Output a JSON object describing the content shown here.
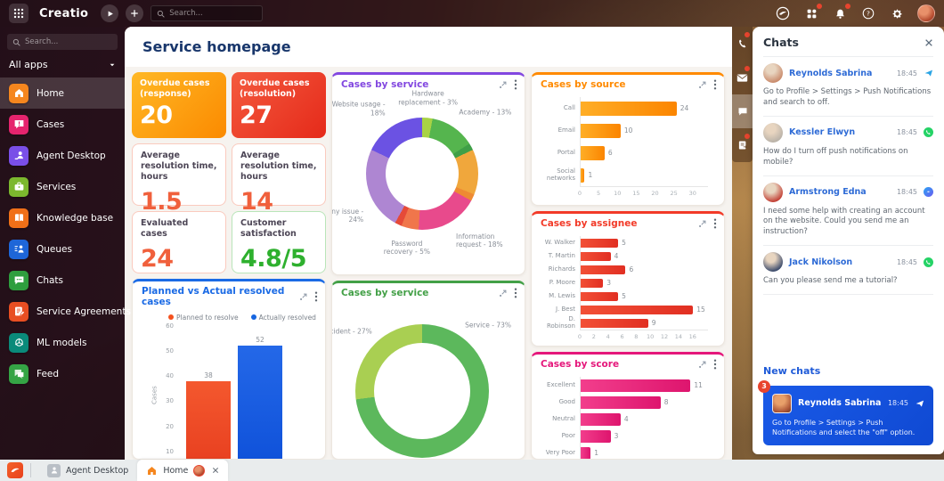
{
  "topbar": {
    "logo_text": "Creatio",
    "search_placeholder": "Search...",
    "right_icons": [
      {
        "icon": "creatio-bird",
        "dot": false
      },
      {
        "icon": "workspace-grid",
        "dot": true
      },
      {
        "icon": "bell",
        "dot": true
      },
      {
        "icon": "help",
        "dot": false
      },
      {
        "icon": "settings",
        "dot": false
      }
    ]
  },
  "sidebar": {
    "search_placeholder": "Search...",
    "workspace_selector": "All apps",
    "items": [
      {
        "label": "Home",
        "icon": "home",
        "color": "#f5861e",
        "active": true
      },
      {
        "label": "Cases",
        "icon": "cases",
        "color": "#e5246e",
        "active": false
      },
      {
        "label": "Agent Desktop",
        "icon": "agent-desktop",
        "color": "#7a4fe8",
        "active": false
      },
      {
        "label": "Services",
        "icon": "services",
        "color": "#7cb82e",
        "active": false
      },
      {
        "label": "Knowledge base",
        "icon": "knowledge-base",
        "color": "#f07018",
        "active": false
      },
      {
        "label": "Queues",
        "icon": "queues",
        "color": "#1e66d8",
        "active": false
      },
      {
        "label": "Chats",
        "icon": "chats",
        "color": "#2e9e3e",
        "active": false
      },
      {
        "label": "Service Agreements",
        "icon": "service-agreements",
        "color": "#e84e22",
        "active": false
      },
      {
        "label": "ML models",
        "icon": "ml-models",
        "color": "#0a8a7a",
        "active": false
      },
      {
        "label": "Feed",
        "icon": "feed",
        "color": "#35a445",
        "active": false
      }
    ]
  },
  "page": {
    "title": "Service homepage"
  },
  "metrics": [
    {
      "label": "Overdue cases (response)",
      "value": "20",
      "style": "m-grad-orange"
    },
    {
      "label": "Overdue cases (resolution)",
      "value": "27",
      "style": "m-grad-red"
    },
    {
      "label": "Average resolution time, hours",
      "value": "1.5",
      "accent": "#f0603c"
    },
    {
      "label": "Average resolution time, hours",
      "value": "14",
      "accent": "#f0603c"
    },
    {
      "label": "Evaluated cases",
      "value": "24",
      "accent": "#f0603c"
    },
    {
      "label": "Customer satisfaction",
      "value": "4.8/5",
      "accent": "#2eb02e"
    }
  ],
  "chart_data": [
    {
      "id": "cases-by-service-detail",
      "type": "pie",
      "title": "Cases by service",
      "accent": "#8247e0",
      "slices": [
        {
          "label": "Hardware replacement",
          "value": 3,
          "color": "#a8d245",
          "show_label": true,
          "label_angle": 5
        },
        {
          "label": "Academy",
          "value": 13,
          "color": "#55b54e",
          "show_label": true,
          "label_angle": 33
        },
        {
          "label": "",
          "value": 2,
          "color": "#3f9f47",
          "show_label": false
        },
        {
          "label": "",
          "value": 13,
          "color": "#f0a73c",
          "show_label": false
        },
        {
          "label": "",
          "value": 2,
          "color": "#ee8a33",
          "show_label": false
        },
        {
          "label": "Information request",
          "value": 18,
          "color": "#e84a8c",
          "show_label": true,
          "label_angle": 150
        },
        {
          "label": "Password recovery",
          "value": 5,
          "color": "#f0764b",
          "show_label": true,
          "label_angle": 193
        },
        {
          "label": "",
          "value": 2,
          "color": "#e54a38",
          "show_label": false
        },
        {
          "label": "Telephony issue",
          "value": 24,
          "color": "#ae86d2",
          "show_label": true,
          "label_angle": 240
        },
        {
          "label": "Website usage",
          "value": 18,
          "color": "#6b52e3",
          "show_label": true,
          "label_angle": 327
        }
      ]
    },
    {
      "id": "cases-by-source",
      "type": "bar",
      "orientation": "horizontal",
      "title": "Cases by source",
      "accent": "#ff8a00",
      "bar_gradient": [
        "#ffae26",
        "#fb8500"
      ],
      "categories": [
        "Call",
        "Email",
        "Portal",
        "Social networks"
      ],
      "values": [
        24,
        10,
        6,
        1
      ],
      "xlim": [
        0,
        30
      ],
      "ticks": [
        0,
        5,
        10,
        15,
        20,
        25,
        30
      ]
    },
    {
      "id": "cases-by-assignee",
      "type": "bar",
      "orientation": "horizontal",
      "title": "Cases by assignee",
      "accent": "#f23a28",
      "bar_gradient": [
        "#f25036",
        "#e12f22"
      ],
      "categories": [
        "W. Walker",
        "T. Martin",
        "Richards",
        "P. Moore",
        "M. Lewis",
        "J. Best",
        "D. Robinson"
      ],
      "values": [
        5,
        4,
        6,
        3,
        5,
        15,
        9
      ],
      "xlim": [
        0,
        16
      ],
      "ticks": [
        0,
        2,
        4,
        6,
        8,
        10,
        12,
        14,
        16
      ]
    },
    {
      "id": "cases-by-score",
      "type": "bar",
      "orientation": "horizontal",
      "title": "Cases by score",
      "accent": "#e5177b",
      "bar_gradient": [
        "#f23e8c",
        "#de156e"
      ],
      "categories": [
        "Excellent",
        "Good",
        "Neutral",
        "Poor",
        "Very Poor"
      ],
      "values": [
        11,
        8,
        4,
        3,
        1
      ],
      "xlim": [
        0,
        12
      ],
      "ticks": []
    },
    {
      "id": "planned-vs-actual",
      "type": "bar",
      "orientation": "vertical",
      "title": "Planned vs Actual resolved cases",
      "accent": "#1a6ae5",
      "ylabel": "Cases",
      "ylim": [
        0,
        60
      ],
      "yticks": [
        10,
        20,
        30,
        40,
        50,
        60
      ],
      "series": [
        {
          "name": "Planned to resolve",
          "value": 38,
          "color": "#f4511e",
          "gradient": [
            "#f4582e",
            "#e63c1e"
          ]
        },
        {
          "name": "Actually resolved",
          "value": 52,
          "color": "#1565e0",
          "gradient": [
            "#2468e8",
            "#0d4fd8"
          ]
        }
      ]
    },
    {
      "id": "cases-by-service-split",
      "type": "pie",
      "title": "Cases by service",
      "accent": "#43a047",
      "slices": [
        {
          "label": "Service",
          "value": 73,
          "color": "#5cb85c",
          "show_label": true,
          "label_angle": 35
        },
        {
          "label": "Incident",
          "value": 27,
          "color": "#a9cf52",
          "show_label": true,
          "label_angle": 318
        }
      ]
    }
  ],
  "side_toolbar": {
    "items": [
      {
        "icon": "phone",
        "dot": true,
        "active": false
      },
      {
        "icon": "envelope",
        "dot": true,
        "active": false
      },
      {
        "icon": "chat-bubble",
        "dot": false,
        "active": true
      },
      {
        "icon": "case-doc",
        "dot": true,
        "active": false
      }
    ]
  },
  "chat_panel": {
    "title": "Chats",
    "items": [
      {
        "name": "Reynolds Sabrina",
        "time": "18:45",
        "channel": "telegram",
        "message": "Go to Profile > Settings > Push Notifications and search to off.",
        "avatar_color": "#c98a6b"
      },
      {
        "name": "Kessler Elwyn",
        "time": "18:45",
        "channel": "whatsapp",
        "message": "How do I turn off push notifications on mobile?",
        "avatar_color": "#b9b2a8"
      },
      {
        "name": "Armstrong Edna",
        "time": "18:45",
        "channel": "messenger",
        "message": "I need some help with creating an account on the website. Could you send me an instruction?",
        "avatar_color": "#c23f34"
      },
      {
        "name": "Jack Nikolson",
        "time": "18:45",
        "channel": "whatsapp",
        "message": "Can you please send me a tutorial?",
        "avatar_color": "#3a4a6b"
      }
    ],
    "new_chats_title": "New chats",
    "notification": {
      "badge": "3",
      "name": "Reynolds Sabrina",
      "time": "18:45",
      "channel": "telegram",
      "message": "Go to Profile > Settings > Push Notifications and select the \"off\" option."
    }
  },
  "taskbar": {
    "items": [
      {
        "label": "Agent Desktop",
        "active": false
      },
      {
        "label": "Home",
        "active": true,
        "closable": true
      }
    ]
  }
}
